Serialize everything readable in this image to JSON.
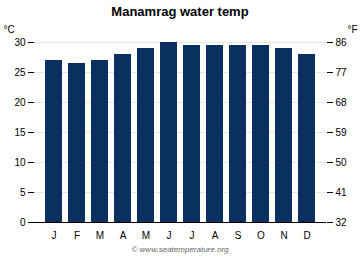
{
  "chart_data": {
    "type": "bar",
    "title": "Manamrag water temp",
    "categories": [
      "J",
      "F",
      "M",
      "A",
      "M",
      "J",
      "J",
      "A",
      "S",
      "O",
      "N",
      "D"
    ],
    "values": [
      27.0,
      26.5,
      27.0,
      28.0,
      29.0,
      30.0,
      29.5,
      29.5,
      29.5,
      29.5,
      29.0,
      28.0
    ],
    "color": "#0a3060",
    "ylim": [
      0,
      30
    ],
    "yticks": [
      0,
      5,
      10,
      15,
      20,
      25,
      30
    ],
    "ylabel": "°C",
    "y2lim": [
      32,
      86
    ],
    "y2ticks": [
      32,
      41,
      50,
      59,
      68,
      77,
      86
    ],
    "y2label": "°F",
    "grid": true,
    "annotation": "© www.seatemperature.org"
  }
}
